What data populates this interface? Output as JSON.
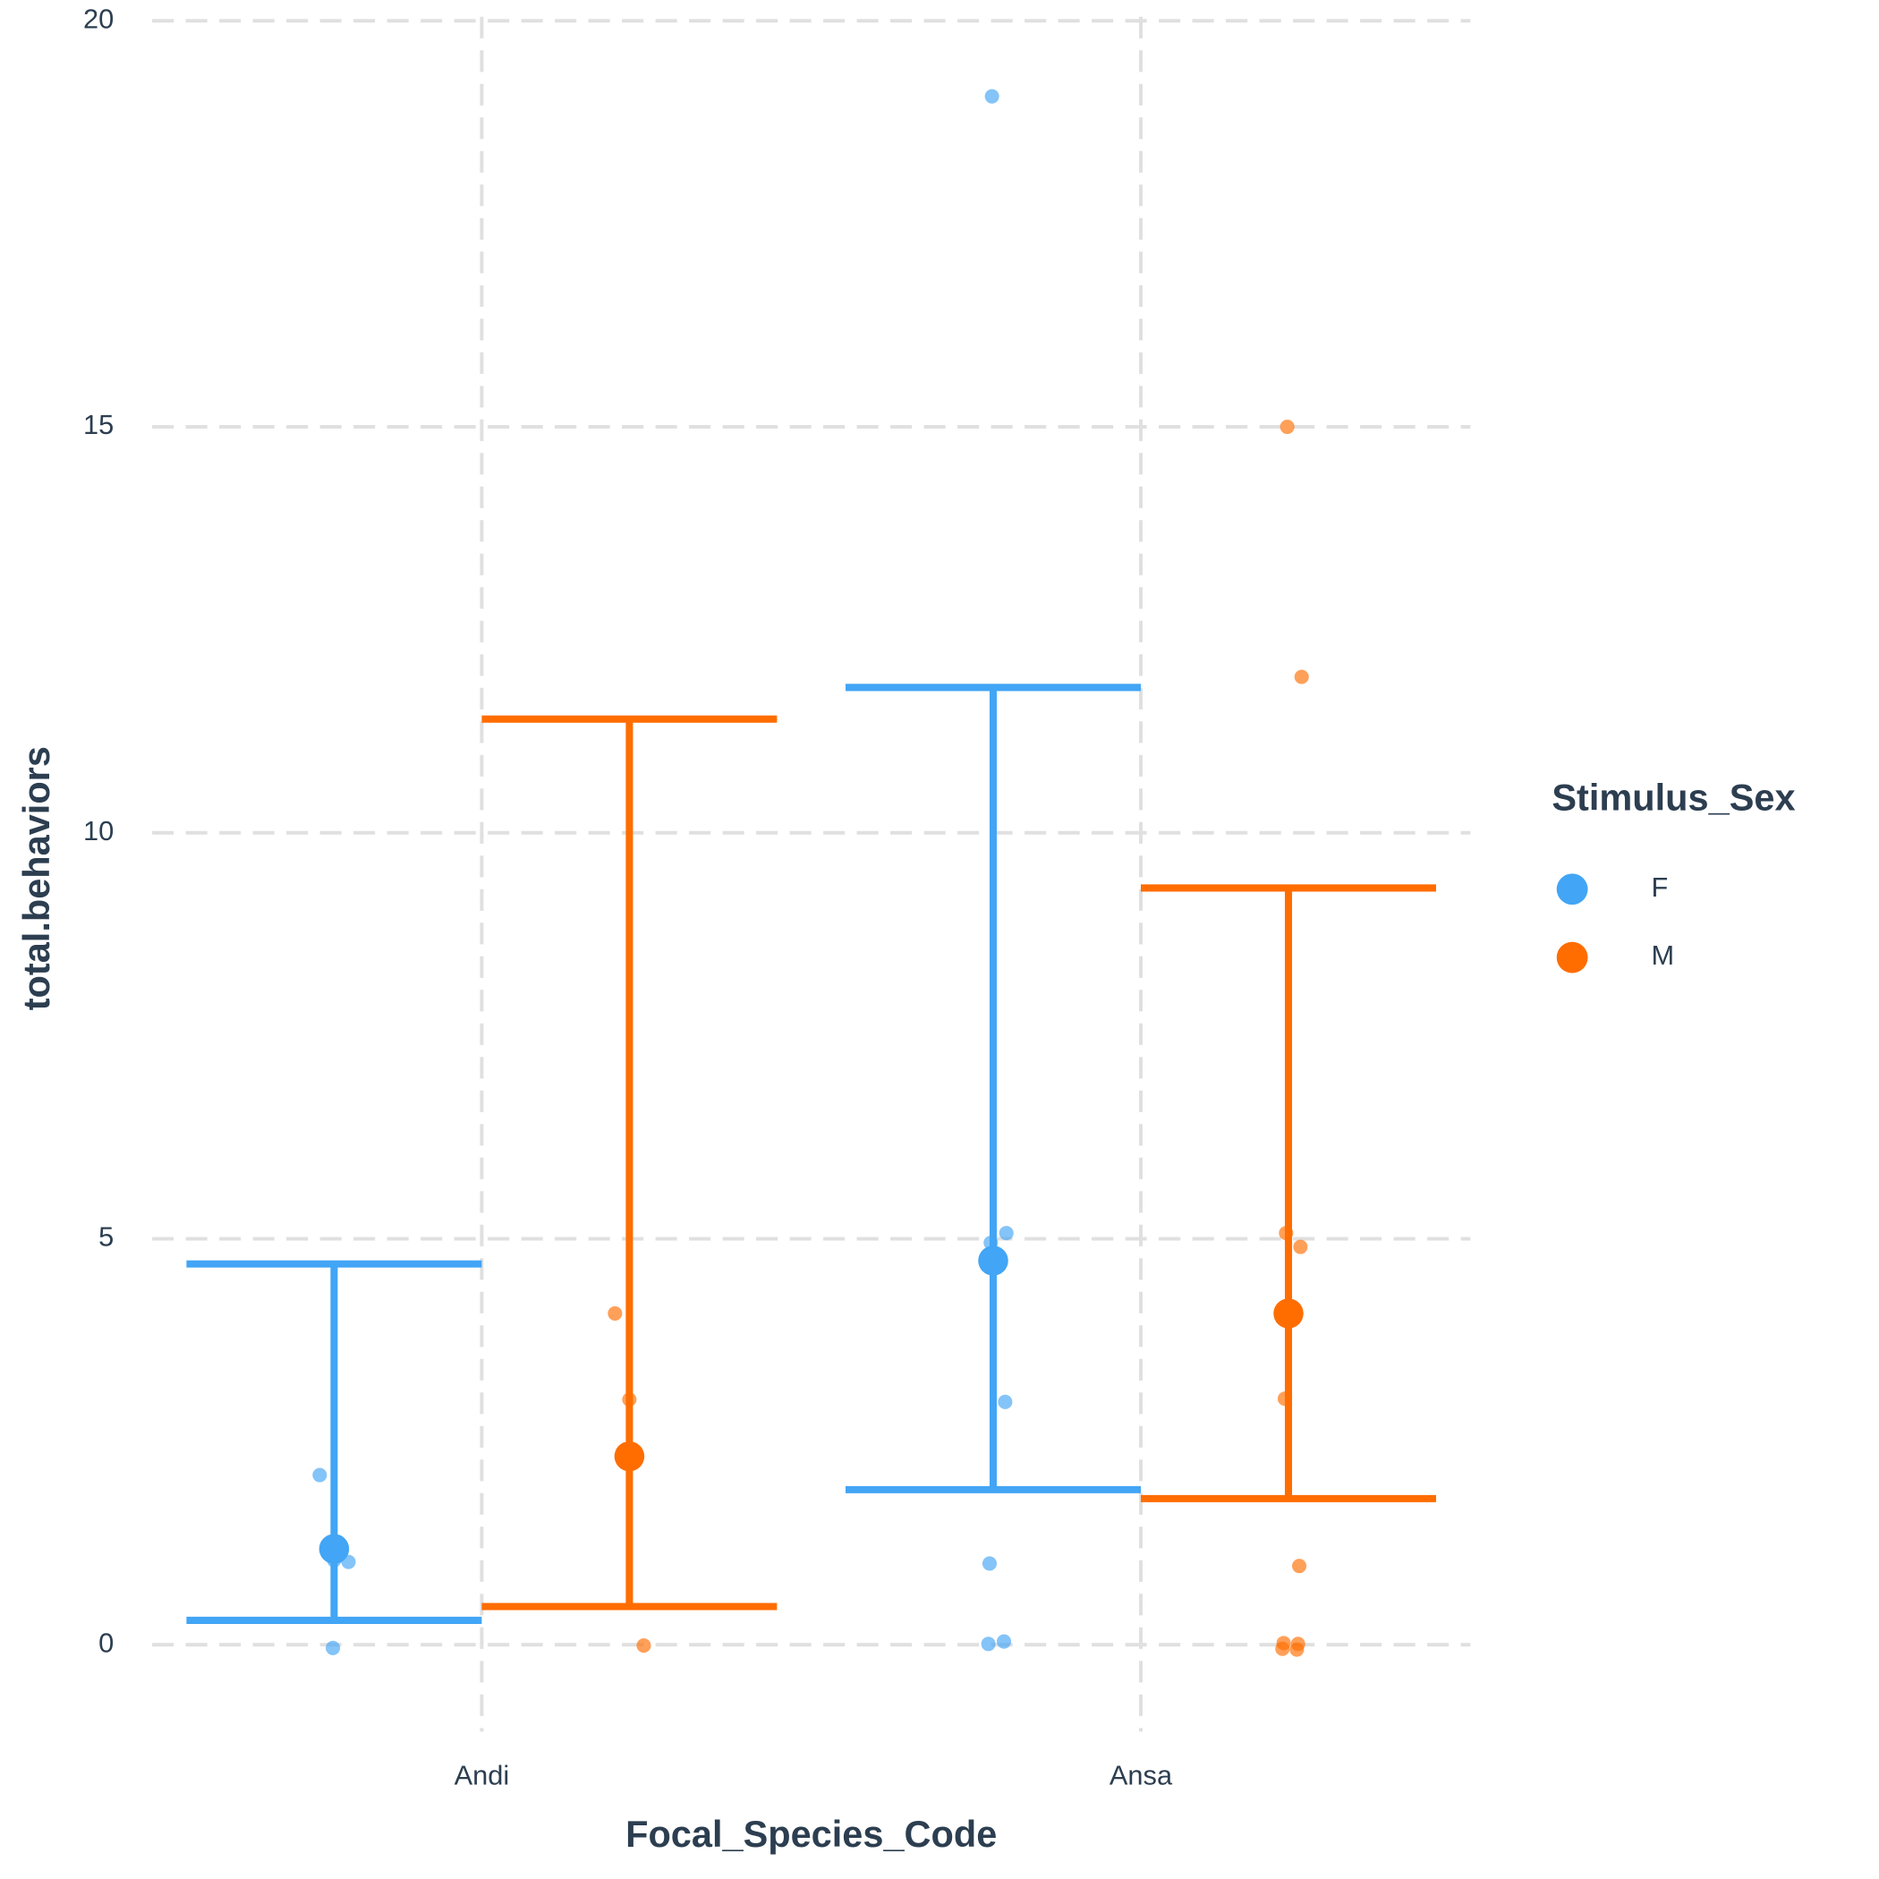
{
  "chart_data": {
    "type": "point-errorbar",
    "x_label": "Focal_Species_Code",
    "y_label": "total.behaviors",
    "legend_title": "Stimulus_Sex",
    "legend_position": "right",
    "categories": [
      "Andi",
      "Ansa"
    ],
    "ylim": [
      -1.07,
      20.05
    ],
    "yticks": [
      0,
      5,
      10,
      15,
      20
    ],
    "grid": true,
    "series": [
      {
        "name": "F",
        "color": "#42a5f5",
        "means": [
          1.18,
          4.73
        ],
        "lower": [
          0.3,
          1.91
        ],
        "upper": [
          4.69,
          11.79
        ],
        "points": [
          [
            2.09,
            1.04,
            1.02,
            -0.04
          ],
          [
            19.07,
            5.07,
            4.95,
            2.99,
            1.0,
            0.04,
            0.01
          ]
        ]
      },
      {
        "name": "M",
        "color": "#ff6d00",
        "means": [
          2.32,
          4.08
        ],
        "lower": [
          0.47,
          1.8
        ],
        "upper": [
          11.4,
          9.32
        ],
        "points": [
          [
            4.08,
            3.02,
            -0.01
          ],
          [
            15.0,
            11.92,
            5.07,
            4.9,
            3.03,
            0.97,
            0.02,
            0.01,
            -0.05,
            -0.06
          ]
        ]
      }
    ]
  }
}
